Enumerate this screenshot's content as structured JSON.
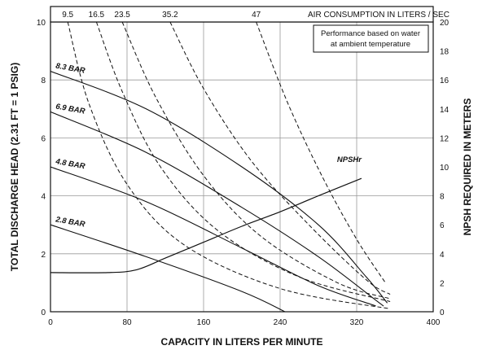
{
  "chart_data": {
    "type": "line",
    "xlabel": "CAPACITY IN LITERS PER MINUTE",
    "ylabel": "TOTAL DISCHARGE HEAD (2.31 FT = 1 PSIG)",
    "y2label": "NPSH REQUIRED IN METERS",
    "toplabel": "AIR CONSUMPTION IN LITERS / SEC",
    "xlim": [
      0,
      400
    ],
    "ylim": [
      0,
      10
    ],
    "y2lim": [
      0,
      20
    ],
    "xticks": [
      0,
      80,
      160,
      240,
      320,
      400
    ],
    "yticks": [
      0,
      2,
      4,
      6,
      8,
      10
    ],
    "y2ticks": [
      0,
      2,
      4,
      6,
      8,
      10,
      12,
      14,
      16,
      18,
      20
    ],
    "grid": true,
    "note": [
      "Performance based on water",
      "at ambient temperature"
    ],
    "air_labels": [
      "9.5",
      "16.5",
      "23.5",
      "35.2",
      "47"
    ],
    "pressure_series": [
      {
        "name": "8.3 BAR",
        "x": [
          0,
          100,
          200,
          280,
          330,
          352
        ],
        "y": [
          8.3,
          7.0,
          5.0,
          3.0,
          1.2,
          0.3
        ]
      },
      {
        "name": "6.9 BAR",
        "x": [
          0,
          100,
          200,
          280,
          340,
          348
        ],
        "y": [
          6.9,
          5.5,
          3.6,
          1.9,
          0.4,
          0.2
        ]
      },
      {
        "name": "4.8 BAR",
        "x": [
          0,
          100,
          200,
          280,
          340
        ],
        "y": [
          5.0,
          3.8,
          2.2,
          0.9,
          0.2
        ]
      },
      {
        "name": "2.8 BAR",
        "x": [
          0,
          100,
          200,
          245
        ],
        "y": [
          3.0,
          1.9,
          0.7,
          0.0
        ]
      }
    ],
    "air_series": [
      {
        "name": "9.5",
        "x": [
          18,
          40,
          80,
          140,
          240,
          355
        ],
        "y": [
          10,
          7.2,
          4.4,
          2.3,
          0.8,
          0.1
        ]
      },
      {
        "name": "16.5",
        "x": [
          48,
          75,
          115,
          175,
          260,
          355
        ],
        "y": [
          10,
          7.6,
          5.0,
          2.8,
          1.2,
          0.35
        ]
      },
      {
        "name": "23.5",
        "x": [
          75,
          110,
          160,
          220,
          300,
          355
        ],
        "y": [
          10,
          7.4,
          4.7,
          2.6,
          1.0,
          0.45
        ]
      },
      {
        "name": "35.2",
        "x": [
          125,
          160,
          210,
          270,
          330,
          355
        ],
        "y": [
          10,
          7.7,
          5.2,
          3.0,
          1.1,
          0.6
        ]
      },
      {
        "name": "47",
        "x": [
          215,
          248,
          285,
          320,
          350
        ],
        "y": [
          10,
          7.2,
          4.6,
          2.5,
          1.0
        ]
      }
    ],
    "npsh": {
      "name": "NPSHr",
      "x": [
        0,
        60,
        90,
        120,
        160,
        200,
        240,
        280,
        325
      ],
      "y": [
        2.7,
        2.7,
        2.9,
        3.7,
        4.8,
        5.9,
        6.9,
        8.0,
        9.2
      ]
    }
  }
}
